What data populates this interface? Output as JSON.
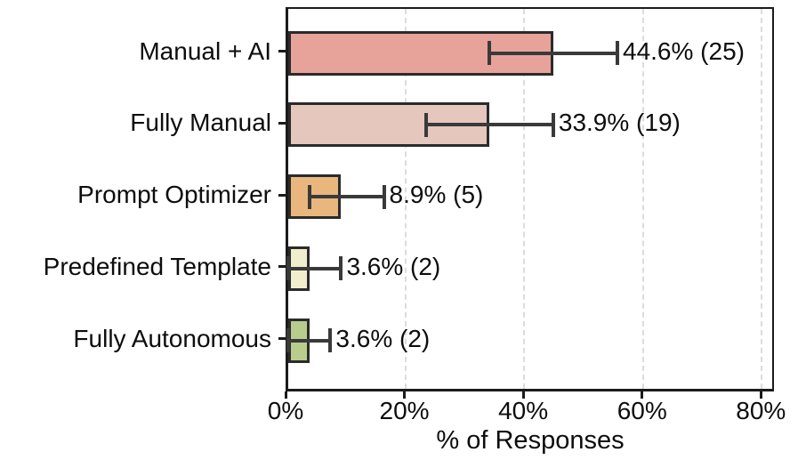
{
  "chart_data": {
    "type": "bar",
    "orientation": "horizontal",
    "title": "",
    "xlabel": "% of Responses",
    "categories": [
      "Manual + AI",
      "Fully Manual",
      "Prompt Optimizer",
      "Predefined Template",
      "Fully Autonomous"
    ],
    "values": [
      44.6,
      33.9,
      8.9,
      3.6,
      3.6
    ],
    "counts": [
      25,
      19,
      5,
      2,
      2
    ],
    "value_labels": [
      "44.6% (25)",
      "33.9% (19)",
      "8.9% (5)",
      "3.6% (2)",
      "3.6% (2)"
    ],
    "error_low": [
      33.9,
      23.2,
      3.6,
      0,
      0
    ],
    "error_high": [
      55.4,
      44.6,
      16.1,
      8.9,
      7.1
    ],
    "bar_colors": [
      "#e7a29a",
      "#e5c7bd",
      "#e9b77d",
      "#f0eecd",
      "#b8cd8d"
    ],
    "bar_edge_color": "#2b2b2b",
    "error_color": "#3a3a3a",
    "grid_color": "#dcdcdc",
    "tick_values": [
      0,
      20,
      40,
      60,
      80
    ],
    "tick_labels": [
      "0%",
      "20%",
      "40%",
      "60%",
      "80%"
    ],
    "xlim": [
      0,
      82.2
    ],
    "grid": "vertical-dashed",
    "legend": "none"
  }
}
